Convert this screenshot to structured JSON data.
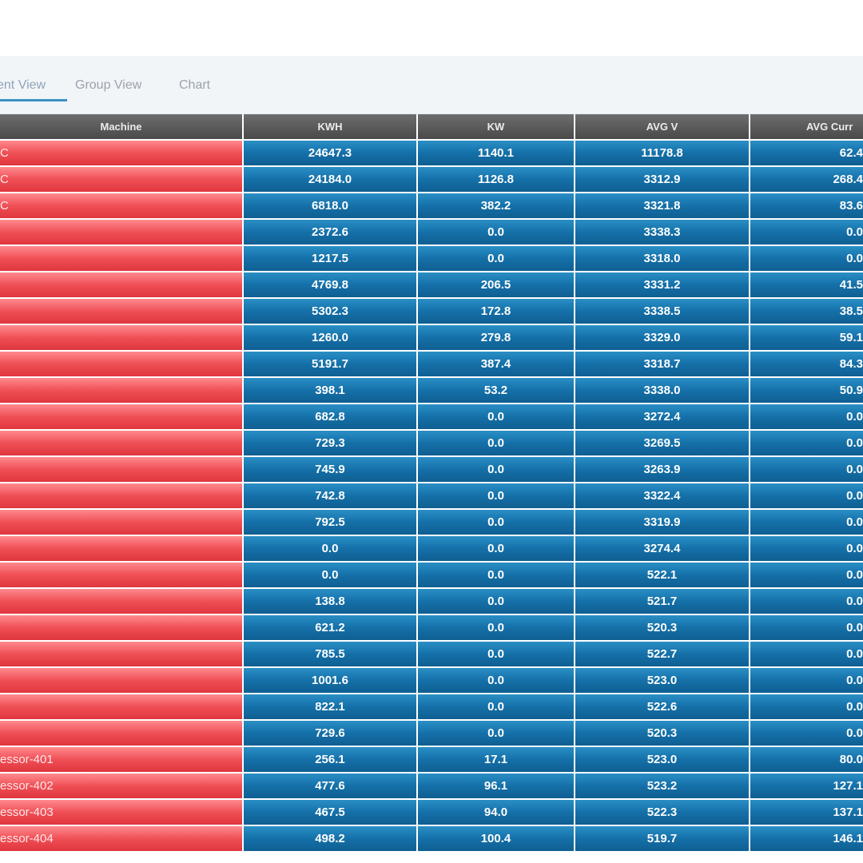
{
  "tabs": [
    "ent View",
    "Group View",
    "Chart"
  ],
  "columns": [
    "Machine",
    "KWH",
    "KW",
    "AVG V",
    "AVG Curr"
  ],
  "rows": [
    {
      "name": "C",
      "kwh": "24647.3",
      "kw": "1140.1",
      "avgv": "11178.8",
      "avgc": "62.4"
    },
    {
      "name": "C",
      "kwh": "24184.0",
      "kw": "1126.8",
      "avgv": "3312.9",
      "avgc": "268.4"
    },
    {
      "name": "C",
      "kwh": "6818.0",
      "kw": "382.2",
      "avgv": "3321.8",
      "avgc": "83.6"
    },
    {
      "name": "",
      "kwh": "2372.6",
      "kw": "0.0",
      "avgv": "3338.3",
      "avgc": "0.0"
    },
    {
      "name": "",
      "kwh": "1217.5",
      "kw": "0.0",
      "avgv": "3318.0",
      "avgc": "0.0"
    },
    {
      "name": "",
      "kwh": "4769.8",
      "kw": "206.5",
      "avgv": "3331.2",
      "avgc": "41.5"
    },
    {
      "name": "",
      "kwh": "5302.3",
      "kw": "172.8",
      "avgv": "3338.5",
      "avgc": "38.5"
    },
    {
      "name": "",
      "kwh": "1260.0",
      "kw": "279.8",
      "avgv": "3329.0",
      "avgc": "59.1"
    },
    {
      "name": "",
      "kwh": "5191.7",
      "kw": "387.4",
      "avgv": "3318.7",
      "avgc": "84.3"
    },
    {
      "name": "",
      "kwh": "398.1",
      "kw": "53.2",
      "avgv": "3338.0",
      "avgc": "50.9"
    },
    {
      "name": "",
      "kwh": "682.8",
      "kw": "0.0",
      "avgv": "3272.4",
      "avgc": "0.0"
    },
    {
      "name": "",
      "kwh": "729.3",
      "kw": "0.0",
      "avgv": "3269.5",
      "avgc": "0.0"
    },
    {
      "name": "",
      "kwh": "745.9",
      "kw": "0.0",
      "avgv": "3263.9",
      "avgc": "0.0"
    },
    {
      "name": "",
      "kwh": "742.8",
      "kw": "0.0",
      "avgv": "3322.4",
      "avgc": "0.0"
    },
    {
      "name": "",
      "kwh": "792.5",
      "kw": "0.0",
      "avgv": "3319.9",
      "avgc": "0.0"
    },
    {
      "name": "",
      "kwh": "0.0",
      "kw": "0.0",
      "avgv": "3274.4",
      "avgc": "0.0"
    },
    {
      "name": "",
      "kwh": "0.0",
      "kw": "0.0",
      "avgv": "522.1",
      "avgc": "0.0"
    },
    {
      "name": "",
      "kwh": "138.8",
      "kw": "0.0",
      "avgv": "521.7",
      "avgc": "0.0"
    },
    {
      "name": "",
      "kwh": "621.2",
      "kw": "0.0",
      "avgv": "520.3",
      "avgc": "0.0"
    },
    {
      "name": "",
      "kwh": "785.5",
      "kw": "0.0",
      "avgv": "522.7",
      "avgc": "0.0"
    },
    {
      "name": "",
      "kwh": "1001.6",
      "kw": "0.0",
      "avgv": "523.0",
      "avgc": "0.0"
    },
    {
      "name": "",
      "kwh": "822.1",
      "kw": "0.0",
      "avgv": "522.6",
      "avgc": "0.0"
    },
    {
      "name": "",
      "kwh": "729.6",
      "kw": "0.0",
      "avgv": "520.3",
      "avgc": "0.0"
    },
    {
      "name": "essor-401",
      "kwh": "256.1",
      "kw": "17.1",
      "avgv": "523.0",
      "avgc": "80.0"
    },
    {
      "name": "essor-402",
      "kwh": "477.6",
      "kw": "96.1",
      "avgv": "523.2",
      "avgc": "127.1"
    },
    {
      "name": "essor-403",
      "kwh": "467.5",
      "kw": "94.0",
      "avgv": "522.3",
      "avgc": "137.1"
    },
    {
      "name": "essor-404",
      "kwh": "498.2",
      "kw": "100.4",
      "avgv": "519.7",
      "avgc": "146.1"
    }
  ]
}
